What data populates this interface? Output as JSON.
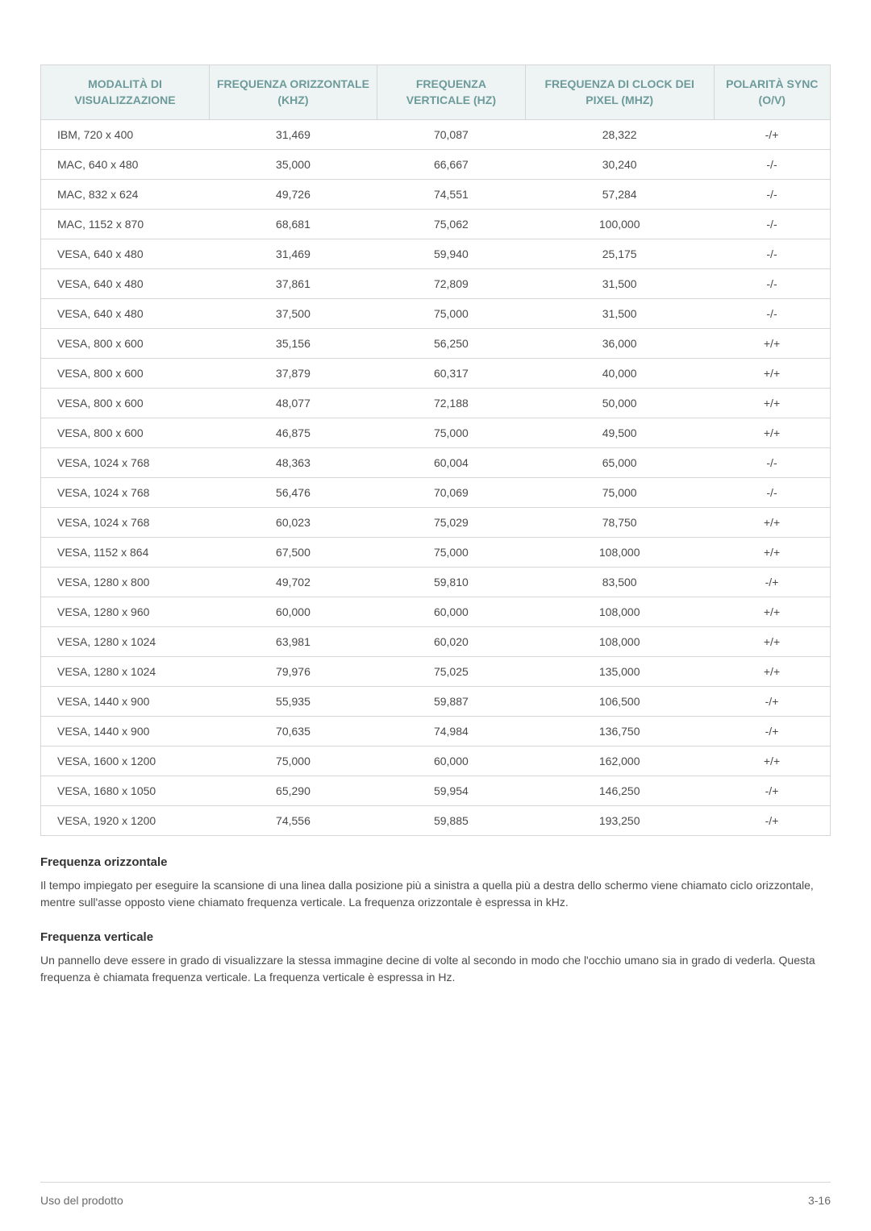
{
  "table": {
    "columns": [
      "MODALITÀ DI VISUALIZZAZIONE",
      "FREQUENZA ORIZZONTALE (KHZ)",
      "FREQUENZA VERTICALE (HZ)",
      "FREQUENZA DI CLOCK DEI PIXEL (MHZ)",
      "POLARITÀ SYNC (O/V)"
    ],
    "column_widths": [
      "20%",
      "20%",
      "20%",
      "20%",
      "20%"
    ],
    "header_bg": "#eef4f4",
    "header_color": "#6d9a9a",
    "border_color": "#d6d6d6",
    "rows": [
      [
        "IBM, 720 x 400",
        "31,469",
        "70,087",
        "28,322",
        "-/+"
      ],
      [
        "MAC, 640 x 480",
        "35,000",
        "66,667",
        "30,240",
        "-/-"
      ],
      [
        "MAC, 832 x 624",
        "49,726",
        "74,551",
        "57,284",
        "-/-"
      ],
      [
        "MAC, 1152 x 870",
        "68,681",
        "75,062",
        "100,000",
        "-/-"
      ],
      [
        "VESA, 640 x 480",
        "31,469",
        "59,940",
        "25,175",
        "-/-"
      ],
      [
        "VESA, 640 x 480",
        "37,861",
        "72,809",
        "31,500",
        "-/-"
      ],
      [
        "VESA, 640 x 480",
        "37,500",
        "75,000",
        "31,500",
        "-/-"
      ],
      [
        "VESA, 800 x 600",
        "35,156",
        "56,250",
        "36,000",
        "+/+"
      ],
      [
        "VESA, 800 x 600",
        "37,879",
        "60,317",
        "40,000",
        "+/+"
      ],
      [
        "VESA, 800 x 600",
        "48,077",
        "72,188",
        "50,000",
        "+/+"
      ],
      [
        "VESA, 800 x 600",
        "46,875",
        "75,000",
        "49,500",
        "+/+"
      ],
      [
        "VESA, 1024 x 768",
        "48,363",
        "60,004",
        "65,000",
        "-/-"
      ],
      [
        "VESA, 1024 x 768",
        "56,476",
        "70,069",
        "75,000",
        "-/-"
      ],
      [
        "VESA, 1024 x 768",
        "60,023",
        "75,029",
        "78,750",
        "+/+"
      ],
      [
        "VESA, 1152 x 864",
        "67,500",
        "75,000",
        "108,000",
        "+/+"
      ],
      [
        "VESA, 1280 x 800",
        "49,702",
        "59,810",
        "83,500",
        "-/+"
      ],
      [
        "VESA, 1280 x 960",
        "60,000",
        "60,000",
        "108,000",
        "+/+"
      ],
      [
        "VESA, 1280 x 1024",
        "63,981",
        "60,020",
        "108,000",
        "+/+"
      ],
      [
        "VESA, 1280 x 1024",
        "79,976",
        "75,025",
        "135,000",
        "+/+"
      ],
      [
        "VESA, 1440 x 900",
        "55,935",
        "59,887",
        "106,500",
        "-/+"
      ],
      [
        "VESA, 1440 x 900",
        "70,635",
        "74,984",
        "136,750",
        "-/+"
      ],
      [
        "VESA, 1600 x 1200",
        "75,000",
        "60,000",
        "162,000",
        "+/+"
      ],
      [
        "VESA, 1680 x 1050",
        "65,290",
        "59,954",
        "146,250",
        "-/+"
      ],
      [
        "VESA, 1920 x 1200",
        "74,556",
        "59,885",
        "193,250",
        "-/+"
      ]
    ]
  },
  "sections": {
    "s1_title": "Frequenza orizzontale",
    "s1_body": "Il tempo impiegato per eseguire la scansione di una linea dalla posizione più a sinistra a quella più a destra dello schermo viene chiamato ciclo orizzontale, mentre sull'asse opposto viene chiamato frequenza verticale. La frequenza orizzontale è espressa in kHz.",
    "s2_title": "Frequenza verticale",
    "s2_body": "Un pannello deve essere in grado di visualizzare la stessa immagine decine di volte al secondo in modo che l'occhio umano sia in grado di vederla. Questa frequenza è chiamata frequenza verticale. La frequenza verticale è espressa in Hz."
  },
  "footer": {
    "left": "Uso del prodotto",
    "right": "3-16"
  }
}
